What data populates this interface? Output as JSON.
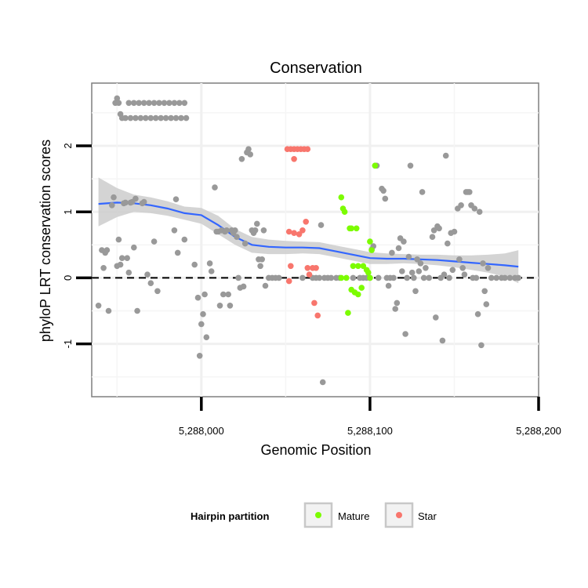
{
  "chart_data": {
    "type": "scatter",
    "title": "Conservation",
    "xlabel": "Genomic Position",
    "ylabel": "phyloP LRT conservation scores",
    "xlim": [
      5287935,
      5288200
    ],
    "ylim": [
      -1.8,
      2.95
    ],
    "x_ticks": [
      5288000,
      5288100,
      5288200
    ],
    "x_tick_labels": [
      "5,288,000",
      "5,288,100",
      "5,288,200"
    ],
    "y_ticks": [
      -1,
      0,
      1,
      2
    ],
    "y_tick_labels": [
      "-1",
      "0",
      "1",
      "2"
    ],
    "grid": true,
    "reference_line": {
      "y": 0,
      "style": "dashed"
    },
    "legend": {
      "title": "Hairpin partition",
      "placement": "bottom",
      "entries": [
        {
          "label": "Mature",
          "color": "#7CFC00"
        },
        {
          "label": "Star",
          "color": "#F8766D"
        }
      ]
    },
    "colors": {
      "other": "#999999",
      "Mature": "#7CFC00",
      "Star": "#F8766D",
      "smooth": "#3366FF",
      "band": "#CCCCCC"
    },
    "series": [
      {
        "group": "other",
        "points": [
          [
            5287939,
            -0.42
          ],
          [
            5287941,
            0.42
          ],
          [
            5287942,
            0.15
          ],
          [
            5287943,
            0.38
          ],
          [
            5287944,
            0.42
          ],
          [
            5287945,
            -0.5
          ],
          [
            5287947,
            1.1
          ],
          [
            5287948,
            1.22
          ],
          [
            5287950,
            0.18
          ],
          [
            5287951,
            0.58
          ],
          [
            5287952,
            0.2
          ],
          [
            5287953,
            0.3
          ],
          [
            5287954,
            1.13
          ],
          [
            5287955,
            1.14
          ],
          [
            5287956,
            0.3
          ],
          [
            5287957,
            0.08
          ],
          [
            5287958,
            1.14
          ],
          [
            5287959,
            1.15
          ],
          [
            5287960,
            0.46
          ],
          [
            5287961,
            1.2
          ],
          [
            5287962,
            -0.5
          ],
          [
            5287965,
            1.13
          ],
          [
            5287966,
            1.15
          ],
          [
            5287968,
            0.05
          ],
          [
            5287970,
            -0.08
          ],
          [
            5287972,
            0.55
          ],
          [
            5287974,
            -0.2
          ],
          [
            5287984,
            0.72
          ],
          [
            5287986,
            0.38
          ],
          [
            5287985,
            1.19
          ],
          [
            5287990,
            0.58
          ],
          [
            5287996,
            0.2
          ],
          [
            5287998,
            -0.3
          ],
          [
            5287999,
            -1.18
          ],
          [
            5288000,
            -0.7
          ],
          [
            5288001,
            -0.55
          ],
          [
            5288002,
            -0.25
          ],
          [
            5288003,
            -0.9
          ],
          [
            5288005,
            0.22
          ],
          [
            5288006,
            0.1
          ],
          [
            5288008,
            1.37
          ],
          [
            5288009,
            0.7
          ],
          [
            5288010,
            0.7
          ],
          [
            5288011,
            -0.42
          ],
          [
            5288012,
            0.72
          ],
          [
            5288013,
            -0.25
          ],
          [
            5288014,
            0.7
          ],
          [
            5288015,
            0.72
          ],
          [
            5288016,
            -0.25
          ],
          [
            5288017,
            -0.42
          ],
          [
            5288018,
            0.72
          ],
          [
            5288019,
            0.68
          ],
          [
            5288020,
            0.72
          ],
          [
            5288021,
            0.62
          ],
          [
            5288022,
            0.0
          ],
          [
            5288023,
            -0.15
          ],
          [
            5288024,
            1.8
          ],
          [
            5288025,
            -0.13
          ],
          [
            5288026,
            0.52
          ],
          [
            5288027,
            1.9
          ],
          [
            5288028,
            1.95
          ],
          [
            5288029,
            1.87
          ],
          [
            5288030,
            0.72
          ],
          [
            5288031,
            0.68
          ],
          [
            5288032,
            0.72
          ],
          [
            5288033,
            0.82
          ],
          [
            5288034,
            0.28
          ],
          [
            5288035,
            0.18
          ],
          [
            5288036,
            0.28
          ],
          [
            5288037,
            0.72
          ],
          [
            5288038,
            -0.12
          ],
          [
            5288040,
            0.0
          ],
          [
            5288042,
            0.0
          ],
          [
            5288044,
            0.0
          ],
          [
            5288046,
            0.0
          ],
          [
            5288060,
            0.0
          ],
          [
            5288066,
            0.0
          ],
          [
            5288068,
            0.0
          ],
          [
            5288070,
            0.0
          ],
          [
            5288071,
            0.8
          ],
          [
            5288072,
            -1.58
          ],
          [
            5288073,
            0.0
          ],
          [
            5288075,
            0.0
          ],
          [
            5288077,
            0.0
          ],
          [
            5288080,
            0.0
          ],
          [
            5288082,
            0.0
          ],
          [
            5288090,
            0.0
          ],
          [
            5288094,
            0.0
          ],
          [
            5288096,
            0.0
          ],
          [
            5288098,
            0.0
          ],
          [
            5288100,
            0.0
          ],
          [
            5288101,
            0.43
          ],
          [
            5288102,
            0.48
          ],
          [
            5288103,
            1.7
          ],
          [
            5288104,
            1.7
          ],
          [
            5288105,
            0.0
          ],
          [
            5288107,
            1.35
          ],
          [
            5288108,
            1.32
          ],
          [
            5288109,
            1.2
          ],
          [
            5288110,
            0.0
          ],
          [
            5288111,
            -0.12
          ],
          [
            5288112,
            0.0
          ],
          [
            5288113,
            0.38
          ],
          [
            5288114,
            0.0
          ],
          [
            5288115,
            -0.47
          ],
          [
            5288116,
            -0.38
          ],
          [
            5288117,
            0.45
          ],
          [
            5288118,
            0.6
          ],
          [
            5288119,
            0.1
          ],
          [
            5288120,
            0.55
          ],
          [
            5288121,
            -0.85
          ],
          [
            5288122,
            0.0
          ],
          [
            5288123,
            0.32
          ],
          [
            5288124,
            1.7
          ],
          [
            5288125,
            0.08
          ],
          [
            5288126,
            0.0
          ],
          [
            5288127,
            -0.2
          ],
          [
            5288128,
            0.28
          ],
          [
            5288129,
            0.1
          ],
          [
            5288130,
            0.22
          ],
          [
            5288131,
            1.3
          ],
          [
            5288132,
            0.0
          ],
          [
            5288133,
            0.15
          ],
          [
            5288135,
            0.0
          ],
          [
            5288137,
            0.62
          ],
          [
            5288138,
            0.72
          ],
          [
            5288139,
            -0.6
          ],
          [
            5288140,
            0.78
          ],
          [
            5288141,
            0.75
          ],
          [
            5288142,
            0.0
          ],
          [
            5288143,
            -0.95
          ],
          [
            5288144,
            0.05
          ],
          [
            5288145,
            1.85
          ],
          [
            5288146,
            0.52
          ],
          [
            5288147,
            0.0
          ],
          [
            5288148,
            0.68
          ],
          [
            5288149,
            0.12
          ],
          [
            5288150,
            0.7
          ],
          [
            5288152,
            1.05
          ],
          [
            5288153,
            0.28
          ],
          [
            5288154,
            1.1
          ],
          [
            5288155,
            0.15
          ],
          [
            5288156,
            0.05
          ],
          [
            5288157,
            1.3
          ],
          [
            5288158,
            1.3
          ],
          [
            5288159,
            1.3
          ],
          [
            5288160,
            1.1
          ],
          [
            5288161,
            0.0
          ],
          [
            5288162,
            1.05
          ],
          [
            5288163,
            0.0
          ],
          [
            5288164,
            -0.55
          ],
          [
            5288165,
            1.0
          ],
          [
            5288166,
            -1.02
          ],
          [
            5288167,
            0.22
          ],
          [
            5288168,
            -0.2
          ],
          [
            5288169,
            -0.4
          ],
          [
            5288170,
            0.15
          ],
          [
            5288172,
            0.0
          ],
          [
            5288175,
            0.0
          ],
          [
            5288178,
            0.0
          ],
          [
            5288180,
            0.0
          ],
          [
            5288183,
            0.0
          ],
          [
            5288186,
            0.0
          ],
          [
            5288188,
            0.0
          ]
        ]
      },
      {
        "group": "other",
        "points": [
          [
            5287949,
            2.65
          ],
          [
            5287950,
            2.72
          ],
          [
            5287951,
            2.65
          ],
          [
            5287952,
            2.48
          ],
          [
            5287953,
            2.42
          ],
          [
            5287955,
            2.42
          ],
          [
            5287957,
            2.65
          ],
          [
            5287958,
            2.42
          ],
          [
            5287960,
            2.65
          ],
          [
            5287961,
            2.42
          ],
          [
            5287963,
            2.65
          ],
          [
            5287964,
            2.42
          ],
          [
            5287966,
            2.65
          ],
          [
            5287967,
            2.42
          ],
          [
            5287969,
            2.65
          ],
          [
            5287970,
            2.42
          ],
          [
            5287972,
            2.65
          ],
          [
            5287973,
            2.42
          ],
          [
            5287975,
            2.65
          ],
          [
            5287976,
            2.42
          ],
          [
            5287978,
            2.65
          ],
          [
            5287979,
            2.42
          ],
          [
            5287981,
            2.65
          ],
          [
            5287982,
            2.42
          ],
          [
            5287984,
            2.65
          ],
          [
            5287985,
            2.42
          ],
          [
            5287987,
            2.65
          ],
          [
            5287988,
            2.42
          ],
          [
            5287990,
            2.65
          ],
          [
            5287991,
            2.42
          ]
        ]
      },
      {
        "group": "Star",
        "points": [
          [
            5288051,
            1.95
          ],
          [
            5288053,
            1.95
          ],
          [
            5288055,
            1.95
          ],
          [
            5288057,
            1.95
          ],
          [
            5288059,
            1.95
          ],
          [
            5288061,
            1.95
          ],
          [
            5288063,
            1.95
          ],
          [
            5288055,
            1.8
          ],
          [
            5288052,
            0.7
          ],
          [
            5288055,
            0.68
          ],
          [
            5288058,
            0.66
          ],
          [
            5288060,
            0.72
          ],
          [
            5288062,
            0.85
          ],
          [
            5288053,
            0.18
          ],
          [
            5288063,
            0.15
          ],
          [
            5288066,
            0.15
          ],
          [
            5288068,
            0.15
          ],
          [
            5288052,
            -0.05
          ],
          [
            5288064,
            0.05
          ],
          [
            5288067,
            -0.38
          ],
          [
            5288069,
            -0.57
          ]
        ]
      },
      {
        "group": "Mature",
        "points": [
          [
            5288083,
            1.22
          ],
          [
            5288084,
            1.05
          ],
          [
            5288085,
            1.0
          ],
          [
            5288088,
            0.75
          ],
          [
            5288089,
            0.75
          ],
          [
            5288092,
            0.75
          ],
          [
            5288100,
            0.55
          ],
          [
            5288101,
            0.42
          ],
          [
            5288103,
            1.7
          ],
          [
            5288090,
            0.18
          ],
          [
            5288093,
            0.18
          ],
          [
            5288096,
            0.18
          ],
          [
            5288098,
            0.12
          ],
          [
            5288099,
            0.08
          ],
          [
            5288100,
            0.0
          ],
          [
            5288086,
            0.0
          ],
          [
            5288083,
            0.0
          ],
          [
            5288089,
            -0.18
          ],
          [
            5288091,
            -0.22
          ],
          [
            5288093,
            -0.25
          ],
          [
            5288095,
            -0.15
          ],
          [
            5288087,
            -0.53
          ]
        ]
      }
    ],
    "smooth": {
      "x": [
        5287939,
        5287950,
        5287960,
        5287970,
        5287980,
        5287990,
        5288000,
        5288010,
        5288020,
        5288030,
        5288040,
        5288050,
        5288060,
        5288070,
        5288080,
        5288090,
        5288100,
        5288110,
        5288120,
        5288130,
        5288140,
        5288150,
        5288160,
        5288170,
        5288180,
        5288188
      ],
      "y": [
        1.12,
        1.14,
        1.13,
        1.1,
        1.05,
        0.98,
        0.95,
        0.8,
        0.62,
        0.5,
        0.47,
        0.46,
        0.46,
        0.45,
        0.4,
        0.35,
        0.3,
        0.29,
        0.29,
        0.28,
        0.27,
        0.25,
        0.23,
        0.21,
        0.19,
        0.17
      ],
      "lower": [
        0.78,
        0.92,
        1.0,
        0.98,
        0.94,
        0.88,
        0.82,
        0.66,
        0.5,
        0.38,
        0.36,
        0.36,
        0.37,
        0.36,
        0.31,
        0.26,
        0.21,
        0.21,
        0.22,
        0.21,
        0.19,
        0.16,
        0.12,
        0.08,
        0.02,
        -0.08
      ],
      "upper": [
        1.52,
        1.36,
        1.26,
        1.22,
        1.16,
        1.08,
        1.06,
        0.94,
        0.74,
        0.62,
        0.58,
        0.56,
        0.55,
        0.54,
        0.49,
        0.44,
        0.39,
        0.37,
        0.36,
        0.35,
        0.35,
        0.34,
        0.34,
        0.35,
        0.37,
        0.42
      ]
    }
  }
}
